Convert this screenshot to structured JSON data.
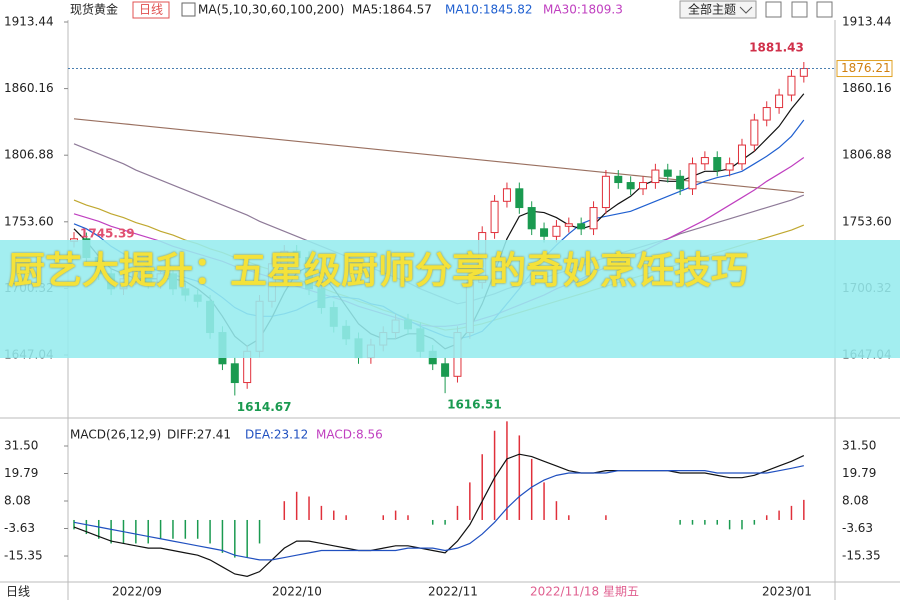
{
  "header": {
    "title": "现货黄金",
    "period": "日线",
    "ma_label": "MA(5,10,30,60,100,200)",
    "ma5": "MA5:1864.57",
    "ma10": "MA10:1845.82",
    "ma30": "MA30:1809.3",
    "theme_button": "全部主题"
  },
  "macd_header": {
    "label": "MACD(26,12,9)",
    "diff": "DIFF:27.41",
    "dea": "DEA:23.12",
    "macd": "MACD:8.56"
  },
  "banner": "厨艺大提升：五星级厨师分享的奇妙烹饪技巧",
  "x_axis": {
    "period": "日线",
    "labels": [
      "2022/09",
      "2022/10",
      "2022/11",
      "2022/11/18 星期五",
      "2023/01"
    ]
  },
  "chart_data": [
    {
      "type": "candlestick",
      "ylim": [
        1599.04,
        1919.84
      ],
      "yticks": [
        1913.44,
        1860.16,
        1806.88,
        {
          "value": 1753.6,
          "label": "1753.60"
        },
        1700.32,
        1647.04
      ],
      "up_color": "#e0303a",
      "down_color": "#1a9a50",
      "open": [
        1738,
        1740,
        1725,
        1712,
        1700,
        1708,
        1715,
        1705,
        1712,
        1700,
        1695,
        1690,
        1665,
        1640,
        1625,
        1650,
        1690,
        1720,
        1730,
        1725,
        1700,
        1685,
        1670,
        1660,
        1645,
        1655,
        1665,
        1675,
        1668,
        1650,
        1640,
        1630,
        1665,
        1705,
        1745,
        1770,
        1780,
        1765,
        1748,
        1742,
        1750,
        1752,
        1748,
        1765,
        1790,
        1785,
        1780,
        1785,
        1795,
        1790,
        1780,
        1800,
        1805,
        1795,
        1800,
        1815,
        1835,
        1845,
        1855,
        1870
      ],
      "high": [
        1745.39,
        1745,
        1730,
        1717,
        1713,
        1720,
        1720,
        1717,
        1717,
        1705,
        1700,
        1695,
        1670,
        1645,
        1655,
        1695,
        1725,
        1735,
        1735,
        1730,
        1705,
        1690,
        1675,
        1665,
        1660,
        1670,
        1680,
        1680,
        1673,
        1655,
        1645,
        1670,
        1710,
        1750,
        1775,
        1785,
        1785,
        1770,
        1753,
        1755,
        1757,
        1757,
        1770,
        1795,
        1795,
        1790,
        1790,
        1800,
        1800,
        1795,
        1805,
        1810,
        1810,
        1805,
        1820,
        1840,
        1850,
        1860,
        1875,
        1881.43
      ],
      "low": [
        1733,
        1720,
        1707,
        1695,
        1695,
        1703,
        1700,
        1700,
        1695,
        1690,
        1685,
        1660,
        1635,
        1614.67,
        1620,
        1645,
        1685,
        1715,
        1720,
        1695,
        1680,
        1665,
        1655,
        1640,
        1640,
        1650,
        1660,
        1663,
        1645,
        1635,
        1616.51,
        1625,
        1660,
        1700,
        1740,
        1765,
        1760,
        1743,
        1737,
        1737,
        1745,
        1743,
        1743,
        1760,
        1780,
        1775,
        1775,
        1780,
        1785,
        1775,
        1775,
        1795,
        1790,
        1790,
        1795,
        1810,
        1830,
        1840,
        1850,
        1865
      ],
      "close": [
        1740,
        1725,
        1712,
        1700,
        1708,
        1715,
        1705,
        1712,
        1700,
        1695,
        1690,
        1665,
        1640,
        1625,
        1650,
        1690,
        1720,
        1730,
        1725,
        1700,
        1685,
        1670,
        1660,
        1645,
        1655,
        1665,
        1675,
        1668,
        1650,
        1640,
        1630,
        1665,
        1705,
        1745,
        1770,
        1780,
        1765,
        1748,
        1742,
        1750,
        1752,
        1748,
        1765,
        1790,
        1785,
        1780,
        1785,
        1795,
        1790,
        1780,
        1800,
        1805,
        1795,
        1800,
        1815,
        1835,
        1845,
        1855,
        1870,
        1876.21
      ],
      "series": [
        {
          "color": "#9a7060",
          "values": [
            1836,
            1835,
            1834,
            1833,
            1832,
            1831,
            1830,
            1829,
            1828,
            1827,
            1826,
            1825,
            1824,
            1823,
            1822,
            1821,
            1820,
            1819,
            1818,
            1817,
            1816,
            1815,
            1814,
            1813,
            1812,
            1811,
            1810,
            1809,
            1808,
            1807,
            1806,
            1805,
            1804,
            1803,
            1802,
            1801,
            1800,
            1799,
            1798,
            1797,
            1796,
            1795,
            1794,
            1793,
            1792,
            1791,
            1790,
            1789,
            1788,
            1787,
            1786,
            1785,
            1784,
            1783,
            1782,
            1781,
            1780,
            1779,
            1778,
            1777
          ]
        },
        {
          "color": "#8e7a98",
          "values": [
            1816,
            1812,
            1808,
            1804,
            1800,
            1795,
            1791,
            1787,
            1783,
            1779,
            1775,
            1771,
            1767,
            1763,
            1759,
            1754,
            1750,
            1746,
            1742,
            1738,
            1734,
            1730,
            1726,
            1722,
            1717,
            1713,
            1709,
            1705,
            1700,
            1696,
            1692,
            1688,
            1690,
            1693,
            1696,
            1700,
            1703,
            1706,
            1709,
            1712,
            1715,
            1718,
            1722,
            1725,
            1728,
            1731,
            1734,
            1737,
            1740,
            1744,
            1747,
            1750,
            1753,
            1756,
            1759,
            1762,
            1765,
            1768,
            1771,
            1775
          ]
        },
        {
          "color": "#c0a830",
          "values": [
            1771,
            1767,
            1764,
            1760,
            1757,
            1753,
            1750,
            1746,
            1743,
            1739,
            1736,
            1732,
            1729,
            1725,
            1722,
            1718,
            1715,
            1711,
            1708,
            1704,
            1701,
            1697,
            1694,
            1690,
            1687,
            1683,
            1680,
            1676,
            1673,
            1670,
            1667,
            1668,
            1670,
            1672,
            1675,
            1678,
            1681,
            1684,
            1687,
            1690,
            1693,
            1696,
            1699,
            1702,
            1705,
            1708,
            1711,
            1714,
            1717,
            1720,
            1723,
            1726,
            1729,
            1732,
            1735,
            1738,
            1741,
            1744,
            1747,
            1751
          ]
        },
        {
          "color": "#c040c0",
          "values": [
            1760,
            1757,
            1754,
            1750,
            1747,
            1744,
            1741,
            1738,
            1734,
            1731,
            1728,
            1725,
            1722,
            1718,
            1715,
            1712,
            1709,
            1706,
            1702,
            1699,
            1696,
            1693,
            1690,
            1686,
            1683,
            1680,
            1677,
            1674,
            1671,
            1670,
            1670,
            1671,
            1673,
            1676,
            1679,
            1683,
            1687,
            1691,
            1695,
            1700,
            1704,
            1708,
            1713,
            1717,
            1721,
            1726,
            1730,
            1735,
            1740,
            1745,
            1750,
            1755,
            1761,
            1767,
            1773,
            1779,
            1786,
            1792,
            1798,
            1805
          ]
        },
        {
          "color": "#2060d0",
          "values": [
            1752,
            1748,
            1742,
            1734,
            1728,
            1722,
            1717,
            1714,
            1711,
            1709,
            1706,
            1700,
            1693,
            1685,
            1680,
            1678,
            1678,
            1680,
            1683,
            1688,
            1692,
            1694,
            1693,
            1692,
            1688,
            1686,
            1680,
            1675,
            1670,
            1666,
            1662,
            1660,
            1662,
            1666,
            1676,
            1688,
            1700,
            1713,
            1725,
            1735,
            1744,
            1752,
            1756,
            1758,
            1760,
            1762,
            1766,
            1770,
            1774,
            1778,
            1782,
            1786,
            1789,
            1791,
            1794,
            1800,
            1806,
            1813,
            1822,
            1835
          ]
        },
        {
          "color": "#111111",
          "values": [
            1748,
            1738,
            1726,
            1716,
            1712,
            1708,
            1708,
            1708,
            1708,
            1706,
            1700,
            1692,
            1678,
            1662,
            1654,
            1660,
            1677,
            1697,
            1713,
            1718,
            1712,
            1700,
            1686,
            1672,
            1664,
            1660,
            1660,
            1664,
            1664,
            1660,
            1652,
            1656,
            1668,
            1688,
            1713,
            1740,
            1758,
            1762,
            1761,
            1757,
            1751,
            1748,
            1751,
            1761,
            1768,
            1774,
            1783,
            1787,
            1786,
            1786,
            1790,
            1794,
            1794,
            1796,
            1803,
            1810,
            1820,
            1830,
            1844,
            1856
          ]
        }
      ]
    },
    {
      "type": "macd",
      "ylim": [
        -24.71,
        40.44
      ],
      "yticks": [
        {
          "value": 31.5,
          "label": "31.50"
        },
        19.79,
        8.08,
        -3.63,
        -15.35
      ],
      "up_color": "#e0303a",
      "down_color": "#1a9a50",
      "series": [
        {
          "color": "#111111",
          "values": [
            -3,
            -5,
            -7,
            -9,
            -10,
            -11,
            -12,
            -12,
            -13,
            -14,
            -15,
            -17,
            -20,
            -23,
            -24,
            -22,
            -17,
            -12,
            -9,
            -9,
            -10,
            -11,
            -12,
            -13,
            -13,
            -12,
            -11,
            -11,
            -12,
            -13,
            -14,
            -9,
            -2,
            8,
            18,
            26,
            28,
            27,
            25,
            23,
            21,
            20,
            20,
            21,
            21,
            21,
            21,
            21,
            21,
            20,
            20,
            20,
            19,
            18,
            18,
            19,
            21,
            23,
            25,
            27.41
          ]
        },
        {
          "color": "#2050c0",
          "values": [
            -1,
            -2,
            -3,
            -4,
            -5,
            -6,
            -7,
            -8,
            -9,
            -10,
            -11,
            -12,
            -13,
            -15,
            -16,
            -17,
            -17,
            -16,
            -15,
            -14,
            -13,
            -13,
            -13,
            -13,
            -13,
            -13,
            -13,
            -12,
            -12,
            -12,
            -13,
            -12,
            -10,
            -6,
            -1,
            5,
            10,
            14,
            17,
            19,
            20,
            20,
            20,
            20,
            21,
            21,
            21,
            21,
            21,
            21,
            21,
            21,
            20,
            20,
            20,
            20,
            20,
            21,
            22,
            23.12
          ]
        }
      ],
      "bars": [
        -4,
        -6,
        -8,
        -10,
        -10,
        -10,
        -10,
        -8,
        -8,
        -8,
        -8,
        -10,
        -14,
        -16,
        -16,
        -10,
        0,
        8,
        12,
        10,
        6,
        4,
        2,
        0,
        0,
        2,
        4,
        2,
        0,
        -2,
        -2,
        6,
        16,
        28,
        38,
        42,
        36,
        26,
        16,
        8,
        2,
        0,
        0,
        2,
        0,
        0,
        0,
        0,
        0,
        -2,
        -2,
        -2,
        -2,
        -4,
        -4,
        -2,
        2,
        4,
        6,
        8.56
      ]
    }
  ]
}
